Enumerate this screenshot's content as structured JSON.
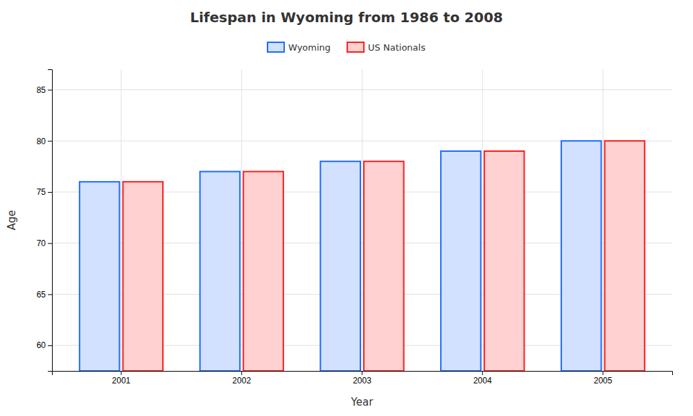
{
  "chart_data": {
    "type": "bar",
    "title": "Lifespan in Wyoming from 1986 to 2008",
    "x_label": "Year",
    "y_label": "Age",
    "categories": [
      "2001",
      "2002",
      "2003",
      "2004",
      "2005"
    ],
    "series": [
      {
        "name": "Wyoming",
        "color": "#1a6aff",
        "values": [
          76.0,
          77.0,
          78.0,
          79.0,
          80.0
        ]
      },
      {
        "name": "US Nationals",
        "color": "#ff1a1a",
        "values": [
          76.0,
          77.0,
          78.0,
          79.0,
          80.0
        ]
      }
    ],
    "ylim": [
      57.5,
      87
    ],
    "yticks": [
      60,
      65,
      70,
      75,
      80,
      85
    ],
    "grid": true,
    "legend": "top"
  }
}
